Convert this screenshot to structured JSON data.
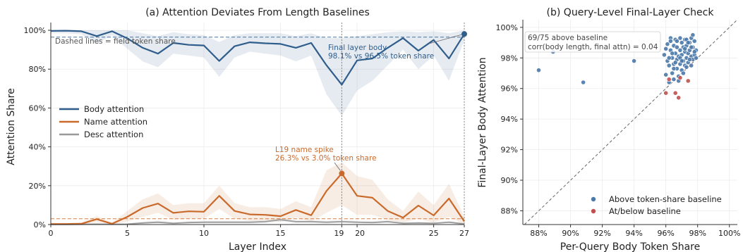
{
  "chart_data": [
    {
      "type": "line",
      "title": "(a) Attention Deviates From Length Baselines",
      "xlabel": "Layer Index",
      "ylabel": "Attention Share",
      "xlim": [
        0,
        27
      ],
      "ylim": [
        0,
        1.04
      ],
      "xticks": [
        0,
        5,
        10,
        15,
        19,
        20,
        25,
        27
      ],
      "xtick_labels": [
        "0",
        "5",
        "10",
        "15",
        "19",
        "20",
        "25",
        "27"
      ],
      "yticks": [
        0,
        0.2,
        0.4,
        0.6,
        0.8,
        1.0
      ],
      "ytick_labels": [
        "0%",
        "20%",
        "40%",
        "60%",
        "80%",
        "100%"
      ],
      "grid": true,
      "legend_position": "center-left",
      "x": [
        0,
        1,
        2,
        3,
        4,
        5,
        6,
        7,
        8,
        9,
        10,
        11,
        12,
        13,
        14,
        15,
        16,
        17,
        18,
        19,
        20,
        21,
        22,
        23,
        24,
        25,
        26,
        27
      ],
      "series": [
        {
          "name": "Body attention",
          "color": "#2f5d8c",
          "values": [
            0.997,
            0.998,
            0.995,
            0.97,
            0.995,
            0.958,
            0.91,
            0.88,
            0.935,
            0.925,
            0.922,
            0.842,
            0.918,
            0.938,
            0.933,
            0.93,
            0.91,
            0.935,
            0.82,
            0.72,
            0.845,
            0.855,
            0.91,
            0.96,
            0.895,
            0.95,
            0.855,
            0.981
          ],
          "band_upper": [
            1.0,
            1.0,
            1.0,
            1.0,
            1.0,
            1.0,
            0.985,
            0.97,
            0.99,
            0.98,
            0.975,
            0.94,
            0.975,
            0.985,
            0.985,
            0.985,
            0.97,
            0.985,
            0.96,
            0.96,
            0.97,
            0.98,
            0.99,
            0.995,
            0.99,
            0.995,
            0.985,
            1.0
          ],
          "band_lower": [
            0.985,
            0.985,
            0.98,
            0.93,
            0.975,
            0.905,
            0.84,
            0.81,
            0.88,
            0.87,
            0.86,
            0.76,
            0.86,
            0.89,
            0.88,
            0.87,
            0.84,
            0.87,
            0.67,
            0.56,
            0.69,
            0.74,
            0.82,
            0.9,
            0.8,
            0.87,
            0.74,
            0.95
          ]
        },
        {
          "name": "Name attention",
          "color": "#c96a2b",
          "values": [
            0.003,
            0.003,
            0.004,
            0.028,
            0.004,
            0.04,
            0.085,
            0.108,
            0.06,
            0.068,
            0.066,
            0.148,
            0.07,
            0.052,
            0.05,
            0.043,
            0.075,
            0.048,
            0.173,
            0.263,
            0.148,
            0.138,
            0.07,
            0.036,
            0.098,
            0.047,
            0.134,
            0.016
          ],
          "band_upper": [
            0.008,
            0.008,
            0.01,
            0.045,
            0.01,
            0.07,
            0.13,
            0.16,
            0.1,
            0.11,
            0.11,
            0.2,
            0.11,
            0.09,
            0.09,
            0.08,
            0.12,
            0.09,
            0.28,
            0.32,
            0.25,
            0.23,
            0.13,
            0.07,
            0.17,
            0.1,
            0.21,
            0.04
          ],
          "band_lower": [
            0.0,
            0.0,
            0.0,
            0.012,
            0.0,
            0.015,
            0.04,
            0.06,
            0.025,
            0.03,
            0.03,
            0.08,
            0.03,
            0.02,
            0.02,
            0.015,
            0.035,
            0.015,
            0.06,
            0.1,
            0.05,
            0.05,
            0.025,
            0.01,
            0.03,
            0.01,
            0.04,
            0.0
          ]
        },
        {
          "name": "Desc attention",
          "color": "#9a9a9a",
          "values": [
            0.0,
            0.0,
            0.001,
            0.002,
            0.001,
            0.002,
            0.008,
            0.012,
            0.006,
            0.01,
            0.012,
            0.012,
            0.012,
            0.012,
            0.015,
            0.025,
            0.015,
            0.015,
            0.012,
            0.015,
            0.012,
            0.01,
            0.015,
            0.006,
            0.008,
            0.006,
            0.012,
            0.003
          ],
          "band_upper": [
            0.002,
            0.002,
            0.004,
            0.006,
            0.004,
            0.006,
            0.015,
            0.022,
            0.013,
            0.018,
            0.02,
            0.02,
            0.02,
            0.02,
            0.024,
            0.035,
            0.025,
            0.025,
            0.02,
            0.025,
            0.02,
            0.018,
            0.025,
            0.012,
            0.015,
            0.012,
            0.02,
            0.008
          ],
          "band_lower": [
            0,
            0,
            0,
            0,
            0,
            0,
            0.002,
            0.004,
            0.001,
            0.003,
            0.005,
            0.005,
            0.005,
            0.005,
            0.007,
            0.015,
            0.006,
            0.006,
            0.005,
            0.006,
            0.005,
            0.004,
            0.006,
            0.001,
            0.002,
            0.001,
            0.005,
            0
          ]
        }
      ],
      "reference_lines": [
        {
          "y": 0.965,
          "color": "#2f5d8c",
          "style": "dashed"
        },
        {
          "y": 0.03,
          "color": "#c96a2b",
          "style": "dashed"
        },
        {
          "x": 19,
          "color": "#888888",
          "style": "dotted"
        },
        {
          "x": 27,
          "color": "#888888",
          "style": "dotted"
        }
      ],
      "annotations": [
        {
          "text": "Dashed lines = field token share",
          "color": "#555555"
        },
        {
          "lines": [
            "Final layer body",
            "98.1% vs 96.5% token share"
          ],
          "color": "#2f5d8c",
          "arrow_to": {
            "x": 27,
            "y": 0.981
          }
        },
        {
          "lines": [
            "L19 name spike",
            "26.3% vs 3.0% token share"
          ],
          "color": "#c96a2b",
          "arrow_to": {
            "x": 19,
            "y": 0.263
          }
        }
      ]
    },
    {
      "type": "scatter",
      "title": "(b) Query-Level Final-Layer Check",
      "xlabel": "Per-Query Body Token Share",
      "ylabel": "Final-Layer Body Attention",
      "xlim": [
        0.87,
        1.005
      ],
      "ylim": [
        0.871,
        1.005
      ],
      "xticks": [
        0.88,
        0.9,
        0.92,
        0.94,
        0.96,
        0.98,
        1.0
      ],
      "xtick_labels": [
        "88%",
        "90%",
        "92%",
        "94%",
        "96%",
        "98%",
        "100%"
      ],
      "yticks": [
        0.88,
        0.9,
        0.92,
        0.94,
        0.96,
        0.98,
        1.0
      ],
      "ytick_labels": [
        "88%",
        "90%",
        "92%",
        "94%",
        "96%",
        "98%",
        "100%"
      ],
      "grid": true,
      "legend_position": "lower-right",
      "diagonal": true,
      "stats_box": [
        "69/75 above baseline",
        "corr(body length, final attn) = 0.04"
      ],
      "series": [
        {
          "name": "Above token-share baseline",
          "color": "#4a78a8",
          "points": [
            [
              0.88,
              0.972
            ],
            [
              0.889,
              0.984
            ],
            [
              0.908,
              0.964
            ],
            [
              0.94,
              0.978
            ],
            [
              0.959,
              0.982
            ],
            [
              0.96,
              0.969
            ],
            [
              0.961,
              0.978
            ],
            [
              0.961,
              0.989
            ],
            [
              0.962,
              0.975
            ],
            [
              0.963,
              0.985
            ],
            [
              0.963,
              0.993
            ],
            [
              0.964,
              0.98
            ],
            [
              0.964,
              0.97
            ],
            [
              0.965,
              0.988
            ],
            [
              0.965,
              0.976
            ],
            [
              0.966,
              0.983
            ],
            [
              0.966,
              0.992
            ],
            [
              0.967,
              0.979
            ],
            [
              0.967,
              0.973
            ],
            [
              0.967,
              0.987
            ],
            [
              0.968,
              0.981
            ],
            [
              0.968,
              0.968
            ],
            [
              0.969,
              0.985
            ],
            [
              0.969,
              0.976
            ],
            [
              0.97,
              0.99
            ],
            [
              0.97,
              0.982
            ],
            [
              0.97,
              0.972
            ],
            [
              0.971,
              0.987
            ],
            [
              0.971,
              0.978
            ],
            [
              0.972,
              0.984
            ],
            [
              0.972,
              0.992
            ],
            [
              0.972,
              0.975
            ],
            [
              0.973,
              0.98
            ],
            [
              0.973,
              0.988
            ],
            [
              0.974,
              0.983
            ],
            [
              0.974,
              0.977
            ],
            [
              0.975,
              0.99
            ],
            [
              0.975,
              0.985
            ],
            [
              0.976,
              0.981
            ],
            [
              0.976,
              0.993
            ],
            [
              0.977,
              0.979
            ],
            [
              0.977,
              0.987
            ],
            [
              0.978,
              0.982
            ],
            [
              0.978,
              0.991
            ],
            [
              0.979,
              0.985
            ],
            [
              0.962,
              0.964
            ],
            [
              0.965,
              0.966
            ],
            [
              0.968,
              0.965
            ],
            [
              0.963,
              0.991
            ],
            [
              0.966,
              0.977
            ],
            [
              0.969,
              0.993
            ],
            [
              0.971,
              0.97
            ],
            [
              0.973,
              0.992
            ],
            [
              0.974,
              0.99
            ],
            [
              0.976,
              0.987
            ],
            [
              0.977,
              0.995
            ],
            [
              0.978,
              0.984
            ],
            [
              0.96,
              0.986
            ],
            [
              0.964,
              0.983
            ],
            [
              0.967,
              0.991
            ],
            [
              0.969,
              0.98
            ],
            [
              0.972,
              0.986
            ],
            [
              0.975,
              0.979
            ],
            [
              0.976,
              0.975
            ],
            [
              0.965,
              0.973
            ],
            [
              0.97,
              0.978
            ],
            [
              0.973,
              0.974
            ],
            [
              0.979,
              0.98
            ],
            [
              0.962,
              0.98
            ]
          ]
        },
        {
          "name": "At/below baseline",
          "color": "#c0504d",
          "points": [
            [
              0.96,
              0.957
            ],
            [
              0.966,
              0.957
            ],
            [
              0.968,
              0.954
            ],
            [
              0.969,
              0.967
            ],
            [
              0.974,
              0.965
            ],
            [
              0.962,
              0.966
            ]
          ]
        }
      ]
    }
  ]
}
